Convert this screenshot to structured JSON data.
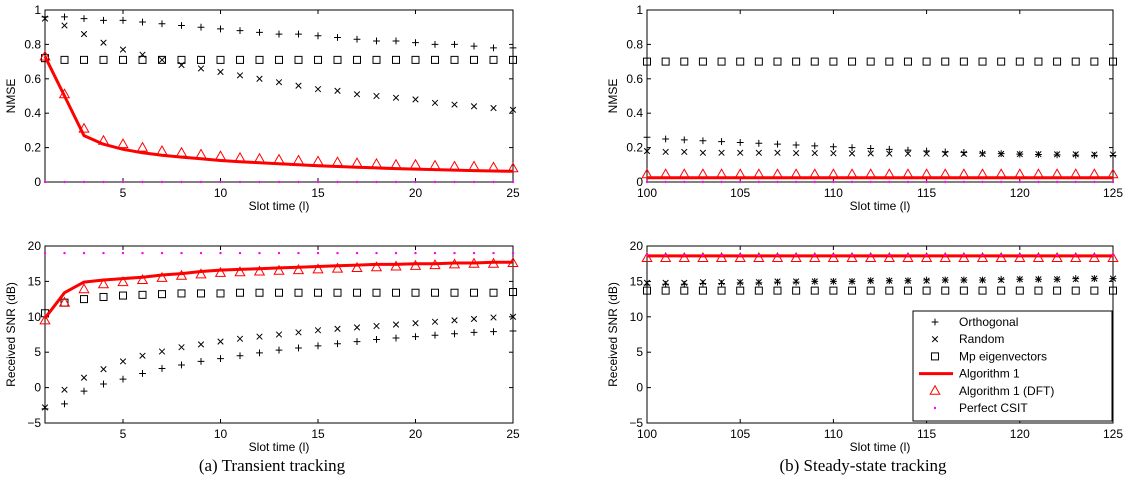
{
  "legend_entries": [
    {
      "key": "orthogonal",
      "label": "Orthogonal",
      "marker": "plus",
      "color": "#000000"
    },
    {
      "key": "random",
      "label": "Random",
      "marker": "x",
      "color": "#000000"
    },
    {
      "key": "mp",
      "label": "Mp eigenvectors",
      "marker": "square",
      "color": "#000000"
    },
    {
      "key": "alg1",
      "label": "Algorithm 1",
      "marker": "line",
      "color": "#ff0000"
    },
    {
      "key": "alg1dft",
      "label": "Algorithm 1 (DFT)",
      "marker": "triangle",
      "color": "#ff0000"
    },
    {
      "key": "perfect",
      "label": "Perfect CSIT",
      "marker": "dot",
      "color": "#ff00ff"
    }
  ],
  "captions": {
    "left": "(a) Transient tracking",
    "right": "(b) Steady-state tracking"
  },
  "chart_data": [
    {
      "id": "a_nmse",
      "type": "line",
      "xlabel": "Slot time (l)",
      "ylabel": "NMSE",
      "xlim": [
        1,
        25
      ],
      "ylim": [
        0,
        1
      ],
      "xticks": [
        5,
        10,
        15,
        20,
        25
      ],
      "yticks": [
        0,
        0.2,
        0.4,
        0.6,
        0.8,
        1
      ],
      "yticklabels": [
        "0",
        "0.2",
        "0.4",
        "0.6",
        "0.8",
        "1"
      ],
      "grid": false,
      "x": [
        1,
        2,
        3,
        4,
        5,
        6,
        7,
        8,
        9,
        10,
        11,
        12,
        13,
        14,
        15,
        16,
        17,
        18,
        19,
        20,
        21,
        22,
        23,
        24,
        25
      ],
      "series": [
        {
          "key": "orthogonal",
          "values": [
            0.96,
            0.96,
            0.95,
            0.94,
            0.94,
            0.93,
            0.92,
            0.91,
            0.9,
            0.89,
            0.88,
            0.87,
            0.86,
            0.86,
            0.85,
            0.84,
            0.83,
            0.82,
            0.82,
            0.81,
            0.8,
            0.8,
            0.79,
            0.78,
            0.78
          ]
        },
        {
          "key": "random",
          "values": [
            0.95,
            0.91,
            0.86,
            0.81,
            0.77,
            0.74,
            0.71,
            0.68,
            0.66,
            0.64,
            0.62,
            0.6,
            0.58,
            0.56,
            0.54,
            0.53,
            0.51,
            0.5,
            0.49,
            0.48,
            0.46,
            0.45,
            0.44,
            0.43,
            0.42
          ]
        },
        {
          "key": "mp",
          "values": [
            0.72,
            0.71,
            0.71,
            0.71,
            0.71,
            0.71,
            0.71,
            0.71,
            0.71,
            0.71,
            0.71,
            0.71,
            0.71,
            0.71,
            0.71,
            0.71,
            0.71,
            0.71,
            0.71,
            0.71,
            0.71,
            0.71,
            0.71,
            0.71,
            0.71
          ]
        },
        {
          "key": "alg1",
          "values": [
            0.73,
            0.5,
            0.27,
            0.22,
            0.19,
            0.17,
            0.155,
            0.145,
            0.135,
            0.125,
            0.118,
            0.112,
            0.106,
            0.1,
            0.095,
            0.09,
            0.086,
            0.082,
            0.078,
            0.075,
            0.072,
            0.069,
            0.066,
            0.064,
            0.062
          ]
        },
        {
          "key": "alg1dft",
          "values": [
            0.73,
            0.51,
            0.31,
            0.24,
            0.22,
            0.2,
            0.18,
            0.17,
            0.16,
            0.15,
            0.14,
            0.135,
            0.13,
            0.125,
            0.12,
            0.115,
            0.11,
            0.105,
            0.1,
            0.1,
            0.095,
            0.09,
            0.09,
            0.085,
            0.08
          ]
        },
        {
          "key": "perfect",
          "values": [
            0,
            0,
            0,
            0,
            0,
            0,
            0,
            0,
            0,
            0,
            0,
            0,
            0,
            0,
            0,
            0,
            0,
            0,
            0,
            0,
            0,
            0,
            0,
            0,
            0
          ]
        }
      ]
    },
    {
      "id": "b_nmse",
      "type": "line",
      "xlabel": "Slot time (l)",
      "ylabel": "NMSE",
      "xlim": [
        100,
        125
      ],
      "ylim": [
        0,
        1
      ],
      "xticks": [
        100,
        105,
        110,
        115,
        120,
        125
      ],
      "yticks": [
        0,
        0.2,
        0.4,
        0.6,
        0.8,
        1
      ],
      "yticklabels": [
        "0",
        "0.2",
        "0.4",
        "0.6",
        "0.8",
        "1"
      ],
      "grid": false,
      "x": [
        100,
        101,
        102,
        103,
        104,
        105,
        106,
        107,
        108,
        109,
        110,
        111,
        112,
        113,
        114,
        115,
        116,
        117,
        118,
        119,
        120,
        121,
        122,
        123,
        124,
        125
      ],
      "series": [
        {
          "key": "orthogonal",
          "values": [
            0.26,
            0.25,
            0.245,
            0.24,
            0.235,
            0.23,
            0.225,
            0.22,
            0.215,
            0.21,
            0.205,
            0.2,
            0.195,
            0.19,
            0.185,
            0.18,
            0.175,
            0.172,
            0.168,
            0.165,
            0.162,
            0.16,
            0.158,
            0.156,
            0.155,
            0.154
          ]
        },
        {
          "key": "random",
          "values": [
            0.18,
            0.175,
            0.175,
            0.17,
            0.17,
            0.17,
            0.17,
            0.17,
            0.168,
            0.168,
            0.167,
            0.166,
            0.166,
            0.165,
            0.165,
            0.165,
            0.164,
            0.164,
            0.163,
            0.163,
            0.162,
            0.162,
            0.161,
            0.161,
            0.16,
            0.16
          ]
        },
        {
          "key": "mp",
          "values": [
            0.7,
            0.7,
            0.7,
            0.7,
            0.7,
            0.7,
            0.7,
            0.7,
            0.7,
            0.7,
            0.7,
            0.7,
            0.7,
            0.7,
            0.7,
            0.7,
            0.7,
            0.7,
            0.7,
            0.7,
            0.7,
            0.7,
            0.7,
            0.7,
            0.7,
            0.7
          ]
        },
        {
          "key": "alg1",
          "values": [
            0.025,
            0.025,
            0.025,
            0.025,
            0.025,
            0.025,
            0.025,
            0.025,
            0.025,
            0.025,
            0.025,
            0.025,
            0.025,
            0.025,
            0.025,
            0.025,
            0.025,
            0.025,
            0.025,
            0.025,
            0.025,
            0.025,
            0.025,
            0.025,
            0.025,
            0.025
          ]
        },
        {
          "key": "alg1dft",
          "values": [
            0.045,
            0.045,
            0.045,
            0.045,
            0.045,
            0.045,
            0.045,
            0.045,
            0.045,
            0.045,
            0.045,
            0.045,
            0.045,
            0.045,
            0.045,
            0.045,
            0.045,
            0.045,
            0.045,
            0.045,
            0.045,
            0.045,
            0.045,
            0.045,
            0.045,
            0.045
          ]
        },
        {
          "key": "perfect",
          "values": [
            0,
            0,
            0,
            0,
            0,
            0,
            0,
            0,
            0,
            0,
            0,
            0,
            0,
            0,
            0,
            0,
            0,
            0,
            0,
            0,
            0,
            0,
            0,
            0,
            0,
            0
          ]
        }
      ]
    },
    {
      "id": "a_snr",
      "type": "line",
      "xlabel": "Slot time (l)",
      "ylabel": "Received SNR (dB)",
      "xlim": [
        1,
        25
      ],
      "ylim": [
        -5,
        20
      ],
      "xticks": [
        5,
        10,
        15,
        20,
        25
      ],
      "yticks": [
        -5,
        0,
        5,
        10,
        15,
        20
      ],
      "yticklabels": [
        "−5",
        "0",
        "5",
        "10",
        "15",
        "20"
      ],
      "grid": false,
      "x": [
        1,
        2,
        3,
        4,
        5,
        6,
        7,
        8,
        9,
        10,
        11,
        12,
        13,
        14,
        15,
        16,
        17,
        18,
        19,
        20,
        21,
        22,
        23,
        24,
        25
      ],
      "series": [
        {
          "key": "orthogonal",
          "values": [
            -3.0,
            -2.3,
            -0.5,
            0.5,
            1.2,
            2.0,
            2.7,
            3.2,
            3.7,
            4.1,
            4.5,
            4.9,
            5.3,
            5.6,
            5.9,
            6.2,
            6.5,
            6.8,
            7.0,
            7.2,
            7.4,
            7.6,
            7.8,
            7.9,
            8.0
          ]
        },
        {
          "key": "random",
          "values": [
            -2.8,
            -0.3,
            1.4,
            2.6,
            3.7,
            4.5,
            5.1,
            5.7,
            6.1,
            6.5,
            6.9,
            7.2,
            7.5,
            7.8,
            8.1,
            8.3,
            8.5,
            8.7,
            8.9,
            9.1,
            9.3,
            9.5,
            9.7,
            9.9,
            10.0
          ]
        },
        {
          "key": "mp",
          "values": [
            10.5,
            12.0,
            12.5,
            12.8,
            13.0,
            13.1,
            13.2,
            13.3,
            13.3,
            13.3,
            13.4,
            13.4,
            13.4,
            13.4,
            13.4,
            13.4,
            13.4,
            13.4,
            13.4,
            13.4,
            13.4,
            13.4,
            13.4,
            13.4,
            13.5
          ]
        },
        {
          "key": "alg1",
          "values": [
            9.8,
            13.4,
            14.9,
            15.2,
            15.4,
            15.6,
            15.9,
            16.1,
            16.4,
            16.6,
            16.7,
            16.8,
            16.9,
            17.0,
            17.1,
            17.2,
            17.3,
            17.4,
            17.4,
            17.5,
            17.5,
            17.6,
            17.6,
            17.7,
            17.7
          ]
        },
        {
          "key": "alg1dft",
          "values": [
            9.5,
            12.0,
            13.9,
            14.6,
            14.9,
            15.2,
            15.5,
            15.8,
            16.0,
            16.2,
            16.3,
            16.4,
            16.5,
            16.6,
            16.7,
            16.8,
            16.9,
            17.0,
            17.1,
            17.2,
            17.3,
            17.4,
            17.5,
            17.5,
            17.6
          ]
        },
        {
          "key": "perfect",
          "values": [
            19,
            19,
            19,
            19,
            19,
            19,
            19,
            19,
            19,
            19,
            19,
            19,
            19,
            19,
            19,
            19,
            19,
            19,
            19,
            19,
            19,
            19,
            19,
            19,
            19
          ]
        }
      ]
    },
    {
      "id": "b_snr",
      "type": "line",
      "xlabel": "Slot time (l)",
      "ylabel": "Received SNR (dB)",
      "xlim": [
        100,
        125
      ],
      "ylim": [
        -5,
        20
      ],
      "xticks": [
        100,
        105,
        110,
        115,
        120,
        125
      ],
      "yticks": [
        -5,
        0,
        5,
        10,
        15,
        20
      ],
      "yticklabels": [
        "−5",
        "0",
        "5",
        "10",
        "15",
        "20"
      ],
      "grid": false,
      "legend_location": "bottom-right",
      "x": [
        100,
        101,
        102,
        103,
        104,
        105,
        106,
        107,
        108,
        109,
        110,
        111,
        112,
        113,
        114,
        115,
        116,
        117,
        118,
        119,
        120,
        121,
        122,
        123,
        124,
        125
      ],
      "series": [
        {
          "key": "orthogonal",
          "values": [
            14.5,
            14.6,
            14.6,
            14.7,
            14.7,
            14.8,
            14.8,
            14.9,
            14.9,
            15.0,
            15.0,
            15.0,
            15.1,
            15.1,
            15.1,
            15.2,
            15.2,
            15.2,
            15.2,
            15.3,
            15.3,
            15.3,
            15.3,
            15.4,
            15.4,
            15.4
          ]
        },
        {
          "key": "random",
          "values": [
            14.8,
            14.8,
            14.8,
            14.9,
            14.9,
            14.9,
            14.9,
            15.0,
            15.0,
            15.0,
            15.0,
            15.0,
            15.1,
            15.1,
            15.1,
            15.1,
            15.2,
            15.2,
            15.2,
            15.2,
            15.3,
            15.3,
            15.3,
            15.3,
            15.4,
            15.4
          ]
        },
        {
          "key": "mp",
          "values": [
            13.7,
            13.7,
            13.7,
            13.7,
            13.7,
            13.7,
            13.7,
            13.7,
            13.7,
            13.7,
            13.7,
            13.7,
            13.7,
            13.7,
            13.7,
            13.7,
            13.7,
            13.7,
            13.7,
            13.7,
            13.7,
            13.7,
            13.7,
            13.7,
            13.7,
            13.7
          ]
        },
        {
          "key": "alg1",
          "values": [
            18.6,
            18.6,
            18.6,
            18.6,
            18.6,
            18.6,
            18.6,
            18.6,
            18.6,
            18.6,
            18.6,
            18.6,
            18.6,
            18.6,
            18.6,
            18.6,
            18.6,
            18.6,
            18.6,
            18.6,
            18.6,
            18.6,
            18.6,
            18.6,
            18.6,
            18.6
          ]
        },
        {
          "key": "alg1dft",
          "values": [
            18.3,
            18.3,
            18.3,
            18.3,
            18.3,
            18.3,
            18.3,
            18.3,
            18.3,
            18.3,
            18.3,
            18.3,
            18.3,
            18.3,
            18.3,
            18.3,
            18.3,
            18.3,
            18.3,
            18.3,
            18.3,
            18.3,
            18.3,
            18.3,
            18.3,
            18.3
          ]
        },
        {
          "key": "perfect",
          "values": [
            18.7,
            18.7,
            18.7,
            18.7,
            18.7,
            18.7,
            18.7,
            18.7,
            18.7,
            18.7,
            18.7,
            18.7,
            18.7,
            18.7,
            18.7,
            18.7,
            18.7,
            18.7,
            18.7,
            18.7,
            18.7,
            18.7,
            18.7,
            18.7,
            18.7,
            18.7
          ]
        }
      ]
    }
  ]
}
